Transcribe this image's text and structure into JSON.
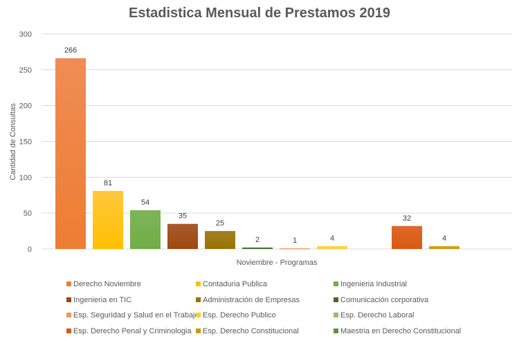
{
  "chart_data": {
    "type": "bar",
    "title": "Estadistica Mensual de Prestamos 2019",
    "xlabel": "Noviembre - Programas",
    "ylabel": "Cantidad de Consultas",
    "ylim": [
      0,
      300
    ],
    "yticks": [
      "0",
      "50",
      "100",
      "150",
      "200",
      "250",
      "300"
    ],
    "grid": true,
    "legend_position": "bottom",
    "series": [
      {
        "name": "Derecho Noviembre",
        "value": 266,
        "color": "#ED7D31",
        "light": "#F08C55"
      },
      {
        "name": "Contaduria Publica",
        "value": 81,
        "color": "#FFC000",
        "light": "#FFC83D"
      },
      {
        "name": "Ingenieria Industrial",
        "value": 54,
        "color": "#70AD47",
        "light": "#7DB558"
      },
      {
        "name": "Ingenieria en TIC",
        "value": 35,
        "color": "#9E480E",
        "light": "#A9592B"
      },
      {
        "name": "Administración de Empresas",
        "value": 25,
        "color": "#997300",
        "light": "#A57F20"
      },
      {
        "name": "Comunicación corporativa",
        "value": 2,
        "color": "#43682B",
        "light": "#4F7535"
      },
      {
        "name": "Esp. Seguridad y Salud en el Trabajo",
        "value": 1,
        "color": "#F1975A",
        "light": "#F4A775"
      },
      {
        "name": "Esp. Derecho Publico",
        "value": 4,
        "color": "#FFCD33",
        "light": "#FFD54F"
      },
      {
        "name": "Esp. Derecho Laboral",
        "value": 0,
        "color": "#8CC168",
        "light": "#9ACB7A"
      },
      {
        "name": "Esp. Derecho Penal y Criminologia",
        "value": 32,
        "color": "#D9580F",
        "light": "#E0692C"
      },
      {
        "name": "Esp. Derecho Constitucional",
        "value": 4,
        "color": "#CC9A06",
        "light": "#D4A72A"
      },
      {
        "name": "Maestria en Derecho Constitucional",
        "value": null,
        "color": "#5B9540",
        "light": "#69A04F"
      }
    ]
  }
}
